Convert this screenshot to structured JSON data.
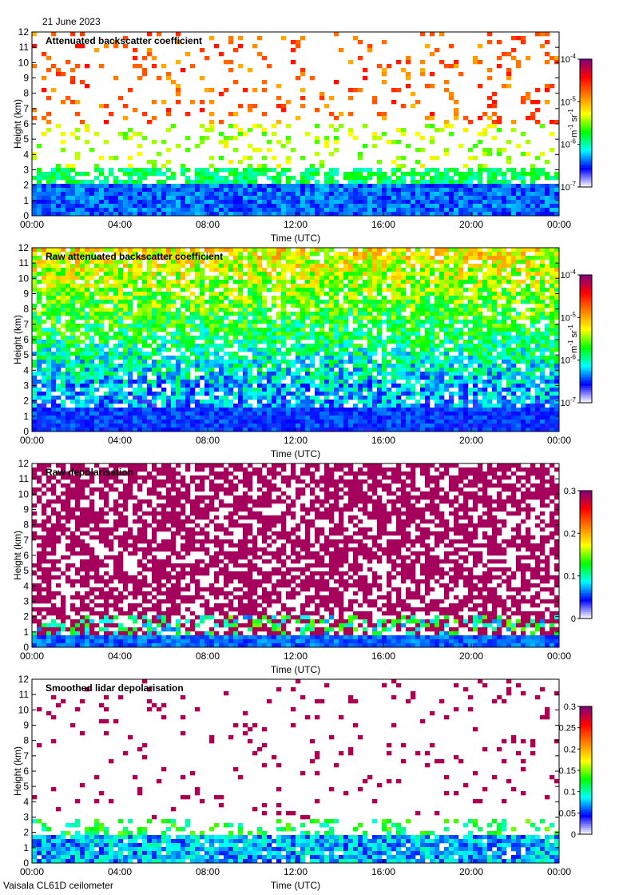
{
  "date": "21 June 2023",
  "footer": "Vaisala CL61D ceilometer",
  "chart_data": [
    {
      "type": "heatmap",
      "title": "Attenuated backscatter coefficient",
      "xlabel": "Time (UTC)",
      "ylabel": "Height (km)",
      "x_ticks": [
        "00:00",
        "04:00",
        "08:00",
        "12:00",
        "16:00",
        "20:00",
        "00:00"
      ],
      "y_ticks": [
        "0",
        "1",
        "2",
        "3",
        "4",
        "5",
        "6",
        "7",
        "8",
        "9",
        "10",
        "11",
        "12"
      ],
      "ylim": [
        0,
        12
      ],
      "colorbar": {
        "scale": "log",
        "range": [
          1e-07,
          0.0001
        ],
        "ticks": [
          {
            "base": "10",
            "exp": "-4"
          },
          {
            "base": "10",
            "exp": "-5"
          },
          {
            "base": "10",
            "exp": "-6"
          },
          {
            "base": "10",
            "exp": "-7"
          }
        ],
        "label": {
          "base": "m",
          "exp1": "-1",
          "mid": " sr",
          "exp2": "-1"
        },
        "colors": [
          "#ffffff",
          "#0000ff",
          "#00ffff",
          "#00ff00",
          "#ffff00",
          "#ff8000",
          "#ff0000",
          "#800080"
        ]
      }
    },
    {
      "type": "heatmap",
      "title": "Raw attenuated backscatter coefficient",
      "xlabel": "Time (UTC)",
      "ylabel": "Height (km)",
      "x_ticks": [
        "00:00",
        "04:00",
        "08:00",
        "12:00",
        "16:00",
        "20:00",
        "00:00"
      ],
      "y_ticks": [
        "0",
        "1",
        "2",
        "3",
        "4",
        "5",
        "6",
        "7",
        "8",
        "9",
        "10",
        "11",
        "12"
      ],
      "ylim": [
        0,
        12
      ],
      "colorbar": {
        "scale": "log",
        "range": [
          1e-07,
          0.0001
        ],
        "ticks": [
          {
            "base": "10",
            "exp": "-4"
          },
          {
            "base": "10",
            "exp": "-5"
          },
          {
            "base": "10",
            "exp": "-6"
          },
          {
            "base": "10",
            "exp": "-7"
          }
        ],
        "label": {
          "base": "m",
          "exp1": "-1",
          "mid": " sr",
          "exp2": "-1"
        },
        "colors": [
          "#ffffff",
          "#0000ff",
          "#00ffff",
          "#00ff00",
          "#ffff00",
          "#ff8000",
          "#ff0000",
          "#800080"
        ]
      }
    },
    {
      "type": "heatmap",
      "title": "Raw depolarisation",
      "xlabel": "Time (UTC)",
      "ylabel": "Height (km)",
      "x_ticks": [
        "00:00",
        "04:00",
        "08:00",
        "12:00",
        "16:00",
        "20:00",
        "00:00"
      ],
      "y_ticks": [
        "0",
        "1",
        "2",
        "3",
        "4",
        "5",
        "6",
        "7",
        "8",
        "9",
        "10",
        "11",
        "12"
      ],
      "ylim": [
        0,
        12
      ],
      "colorbar": {
        "scale": "linear",
        "range": [
          0,
          0.3
        ],
        "ticks": [
          {
            "base": "0.3"
          },
          {
            "base": "0.2"
          },
          {
            "base": "0.1"
          },
          {
            "base": "0"
          }
        ],
        "colors": [
          "#ffffff",
          "#0000ff",
          "#00ffff",
          "#00ff00",
          "#ffff00",
          "#ff8000",
          "#ff0000",
          "#800080"
        ]
      }
    },
    {
      "type": "heatmap",
      "title": "Smoothed lidar depolarisation",
      "xlabel": "Time (UTC)",
      "ylabel": "Height (km)",
      "x_ticks": [
        "00:00",
        "04:00",
        "08:00",
        "12:00",
        "16:00",
        "20:00",
        "00:00"
      ],
      "y_ticks": [
        "0",
        "1",
        "2",
        "3",
        "4",
        "5",
        "6",
        "7",
        "8",
        "9",
        "10",
        "11",
        "12"
      ],
      "ylim": [
        0,
        12
      ],
      "colorbar": {
        "scale": "linear",
        "range": [
          0,
          0.3
        ],
        "ticks": [
          {
            "base": "0.3"
          },
          {
            "base": "0.25"
          },
          {
            "base": "0.2"
          },
          {
            "base": "0.15"
          },
          {
            "base": "0.1"
          },
          {
            "base": "0.05"
          },
          {
            "base": "0"
          }
        ],
        "colors": [
          "#ffffff",
          "#0000ff",
          "#00ffff",
          "#00ff00",
          "#ffff00",
          "#ff8000",
          "#ff0000",
          "#800080"
        ]
      }
    }
  ]
}
